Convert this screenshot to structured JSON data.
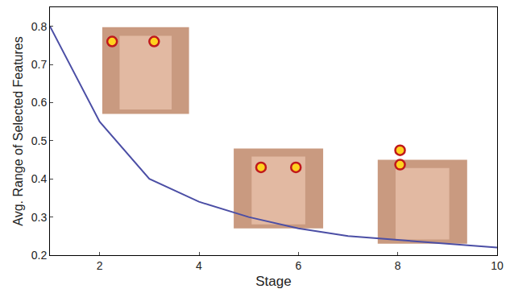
{
  "chart_data": {
    "type": "line",
    "x_label": "Stage",
    "y_label": "Avg. Range of Selected Features",
    "x": [
      1,
      2,
      3,
      4,
      5,
      6,
      7,
      8,
      9,
      10
    ],
    "values": [
      0.8,
      0.55,
      0.4,
      0.34,
      0.3,
      0.27,
      0.25,
      0.24,
      0.23,
      0.22
    ],
    "color": "#4b4ea5",
    "xlim": [
      1,
      10
    ],
    "xticks": [
      2,
      4,
      6,
      8,
      10
    ],
    "ylim": [
      0.2,
      0.85
    ],
    "yticks": [
      0.2,
      0.3,
      0.4,
      0.5,
      0.6,
      0.7,
      0.8
    ],
    "grid": false
  }
}
